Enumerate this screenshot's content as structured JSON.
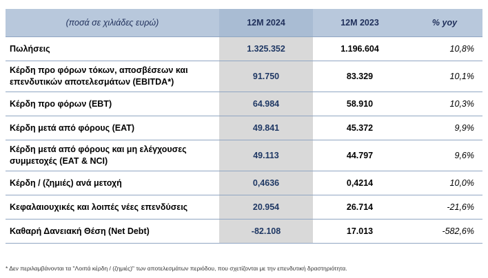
{
  "table": {
    "headers": {
      "label": "(ποσά σε χιλιάδες ευρώ)",
      "current": "12M 2024",
      "previous": "12M 2023",
      "yoy": "% yoy"
    },
    "rows": [
      {
        "label": "Πωλήσεις",
        "current": "1.325.352",
        "previous": "1.196.604",
        "yoy": "10,8%"
      },
      {
        "label": "Κέρδη προ φόρων τόκων, αποσβέσεων και επενδυτικών αποτελεσμάτων (EBITDA*)",
        "current": "91.750",
        "previous": "83.329",
        "yoy": "10,1%"
      },
      {
        "label": "Κέρδη προ φόρων (EBT)",
        "current": "64.984",
        "previous": "58.910",
        "yoy": "10,3%"
      },
      {
        "label": "Κέρδη μετά από φόρους (EAT)",
        "current": "49.841",
        "previous": "45.372",
        "yoy": "9,9%"
      },
      {
        "label": "Κέρδη μετά από φόρους και μη ελέγχουσες συμμετοχές (EAT & NCI)",
        "current": "49.113",
        "previous": "44.797",
        "yoy": "9,6%"
      },
      {
        "label": "Κέρδη / (ζημιές) ανά μετοχή",
        "current": "0,4636",
        "previous": "0,4214",
        "yoy": "10,0%"
      },
      {
        "label": "Κεφαλαιουχικές και λοιπές νέες επενδύσεις",
        "current": "20.954",
        "previous": "26.714",
        "yoy": "-21,6%"
      },
      {
        "label": "Καθαρή Δανειακή Θέση (Net Debt)",
        "current": "-82.108",
        "previous": "17.013",
        "yoy": "-582,6%"
      }
    ]
  },
  "footnote": "* Δεν περιλαμβάνονται τα \"Λοιπά κέρδη / (ζημιές)\" των αποτελεσμάτων περιόδου, που σχετίζονται με την επενδυτική δραστηριότητα.",
  "colors": {
    "header_bg": "#b8c8dc",
    "current_column_bg": "#d9d9d9",
    "current_value_text": "#1f3864",
    "border": "#8fa5c2"
  }
}
